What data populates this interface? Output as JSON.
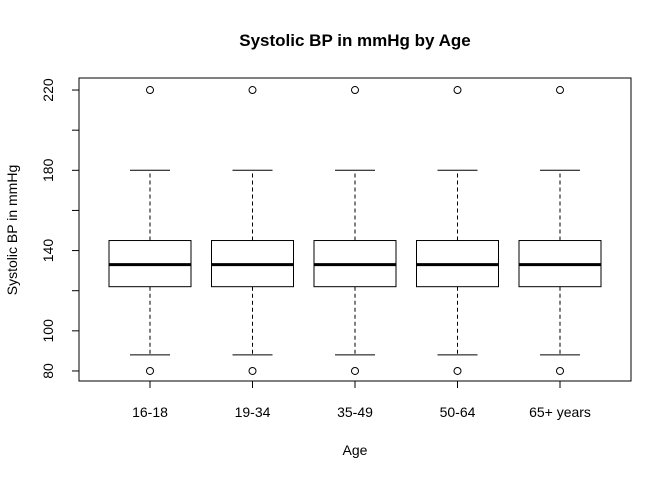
{
  "chart_data": {
    "type": "boxplot",
    "title": "Systolic BP in mmHg by Age",
    "xlabel": "Age",
    "ylabel": "Systolic BP in mmHg",
    "ylim": [
      75,
      226
    ],
    "yticks": [
      80,
      100,
      140,
      180,
      220
    ],
    "yticks_minor": [
      120,
      160,
      200
    ],
    "categories": [
      "16-18",
      "19-34",
      "35-49",
      "50-64",
      "65+ years"
    ],
    "boxes": [
      {
        "category": "16-18",
        "whisker_low": 88,
        "q1": 122,
        "median": 133,
        "q3": 145,
        "whisker_high": 180,
        "outliers": [
          80,
          220
        ]
      },
      {
        "category": "19-34",
        "whisker_low": 88,
        "q1": 122,
        "median": 133,
        "q3": 145,
        "whisker_high": 180,
        "outliers": [
          80,
          220
        ]
      },
      {
        "category": "35-49",
        "whisker_low": 88,
        "q1": 122,
        "median": 133,
        "q3": 145,
        "whisker_high": 180,
        "outliers": [
          80,
          220
        ]
      },
      {
        "category": "50-64",
        "whisker_low": 88,
        "q1": 122,
        "median": 133,
        "q3": 145,
        "whisker_high": 180,
        "outliers": [
          80,
          220
        ]
      },
      {
        "category": "65+ years",
        "whisker_low": 88,
        "q1": 122,
        "median": 133,
        "q3": 145,
        "whisker_high": 180,
        "outliers": [
          80,
          220
        ]
      }
    ],
    "grid": false,
    "legend": "none"
  }
}
